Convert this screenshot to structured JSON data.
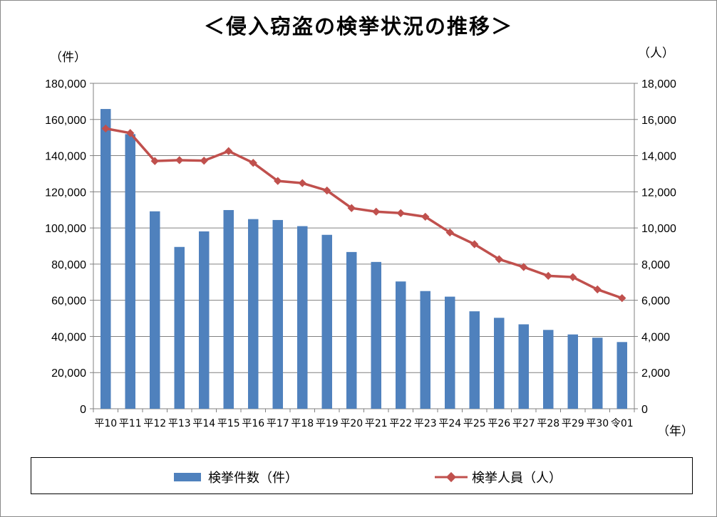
{
  "title": "＜侵入窃盗の検挙状況の推移＞",
  "units": {
    "left": "（件）",
    "right": "（人）",
    "x": "（年）"
  },
  "colors": {
    "bar": "#4f81bd",
    "line": "#c0504d",
    "grid": "#808080",
    "axis": "#808080"
  },
  "legend": {
    "bar_label": "検挙件数（件）",
    "line_label": "検挙人員（人）"
  },
  "chart_data": {
    "type": "bar+line",
    "title": "＜侵入窃盗の検挙状況の推移＞",
    "categories": [
      "平10",
      "平11",
      "平12",
      "平13",
      "平14",
      "平15",
      "平16",
      "平17",
      "平18",
      "平19",
      "平20",
      "平21",
      "平22",
      "平23",
      "平24",
      "平25",
      "平26",
      "平27",
      "平28",
      "平29",
      "平30",
      "令01"
    ],
    "series": [
      {
        "name": "検挙件数（件）",
        "type": "bar",
        "axis": "left",
        "values": [
          165800,
          151900,
          109200,
          89500,
          98100,
          109900,
          104900,
          104400,
          101000,
          96200,
          86700,
          81200,
          70400,
          65100,
          62000,
          53900,
          50300,
          46700,
          43600,
          41100,
          39300,
          36900
        ]
      },
      {
        "name": "検挙人員（人）",
        "type": "line",
        "axis": "right",
        "values": [
          15500,
          15250,
          13700,
          13750,
          13720,
          14250,
          13600,
          12600,
          12480,
          12070,
          11100,
          10900,
          10820,
          10620,
          9750,
          9100,
          8270,
          7840,
          7350,
          7280,
          6600,
          6120
        ]
      }
    ],
    "left_axis": {
      "min": 0,
      "max": 180000,
      "step": 20000,
      "tick_labels": [
        "0",
        "20,000",
        "40,000",
        "60,000",
        "80,000",
        "100,000",
        "120,000",
        "140,000",
        "160,000",
        "180,000"
      ]
    },
    "right_axis": {
      "min": 0,
      "max": 18000,
      "step": 2000,
      "tick_labels": [
        "0",
        "2,000",
        "4,000",
        "6,000",
        "8,000",
        "10,000",
        "12,000",
        "14,000",
        "16,000",
        "18,000"
      ]
    },
    "grid": true,
    "legend_position": "bottom"
  }
}
